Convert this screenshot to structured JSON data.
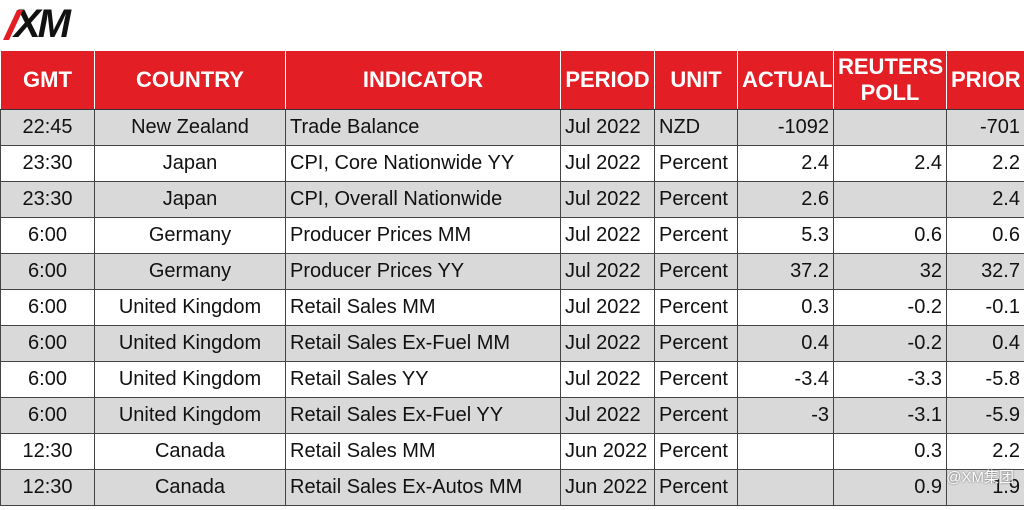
{
  "header": {
    "logo": "XM",
    "watermark": "@XM集团"
  },
  "table": {
    "columns": [
      "GMT",
      "COUNTRY",
      "INDICATOR",
      "PERIOD",
      "UNIT",
      "ACTUAL",
      "REUTERS POLL",
      "PRIOR"
    ],
    "rows": [
      [
        "22:45",
        "New Zealand",
        "Trade Balance",
        "Jul 2022",
        "NZD",
        "-1092",
        null,
        "-701"
      ],
      [
        "23:30",
        "Japan",
        "CPI, Core Nationwide YY",
        "Jul 2022",
        "Percent",
        "2.4",
        "2.4",
        "2.2"
      ],
      [
        "23:30",
        "Japan",
        "CPI, Overall Nationwide",
        "Jul 2022",
        "Percent",
        "2.6",
        null,
        "2.4"
      ],
      [
        "6:00",
        "Germany",
        "Producer Prices MM",
        "Jul 2022",
        "Percent",
        "5.3",
        "0.6",
        "0.6"
      ],
      [
        "6:00",
        "Germany",
        "Producer Prices YY",
        "Jul 2022",
        "Percent",
        "37.2",
        "32",
        "32.7"
      ],
      [
        "6:00",
        "United Kingdom",
        "Retail Sales MM",
        "Jul 2022",
        "Percent",
        "0.3",
        "-0.2",
        "-0.1"
      ],
      [
        "6:00",
        "United Kingdom",
        "Retail Sales Ex-Fuel MM",
        "Jul 2022",
        "Percent",
        "0.4",
        "-0.2",
        "0.4"
      ],
      [
        "6:00",
        "United Kingdom",
        "Retail Sales YY",
        "Jul 2022",
        "Percent",
        "-3.4",
        "-3.3",
        "-5.8"
      ],
      [
        "6:00",
        "United Kingdom",
        "Retail Sales Ex-Fuel YY",
        "Jul 2022",
        "Percent",
        "-3",
        "-3.1",
        "-5.9"
      ],
      [
        "12:30",
        "Canada",
        "Retail Sales MM",
        "Jun 2022",
        "Percent",
        null,
        "0.3",
        "2.2"
      ],
      [
        "12:30",
        "Canada",
        "Retail Sales Ex-Autos MM",
        "Jun 2022",
        "Percent",
        null,
        "0.9",
        "1.9"
      ]
    ]
  }
}
